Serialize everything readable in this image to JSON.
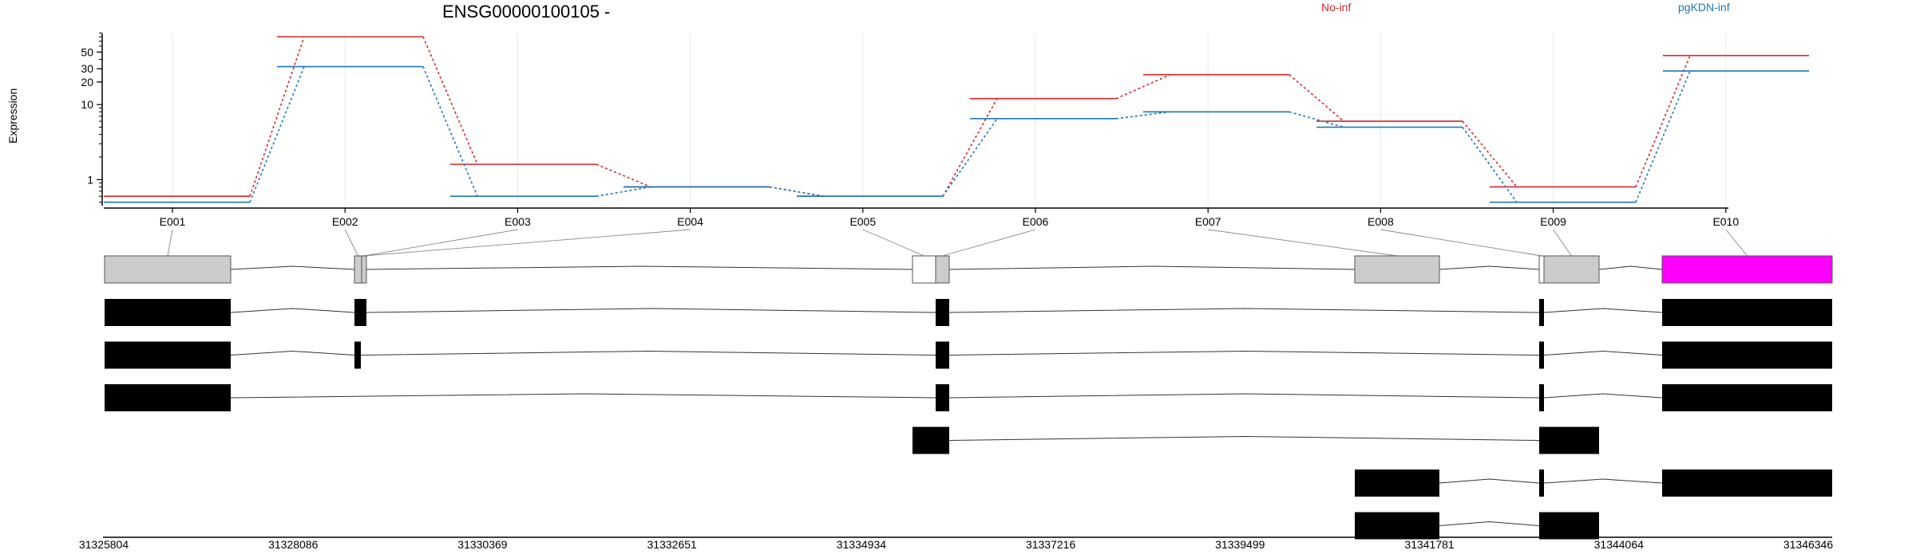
{
  "chart_data": {
    "type": "line",
    "title": "ENSG00000100105 -",
    "ylabel": "Expression",
    "yscale": "log",
    "ylim": [
      0.45,
      100
    ],
    "yticks": [
      1,
      10,
      20,
      30,
      50
    ],
    "grid": true,
    "categories": [
      "E001",
      "E002",
      "E003",
      "E004",
      "E005",
      "E006",
      "E007",
      "E008",
      "E009",
      "E010"
    ],
    "series": [
      {
        "name": "No-inf",
        "color": "#d62728",
        "values": [
          0.6,
          80,
          1.6,
          0.8,
          0.6,
          12,
          25,
          6,
          0.8,
          45
        ]
      },
      {
        "name": "pgKDN-inf",
        "color": "#1f77b4",
        "values": [
          0.5,
          32,
          0.6,
          0.8,
          0.6,
          6.5,
          8,
          5,
          0.5,
          28
        ]
      }
    ],
    "genomic_axis": {
      "tick_labels": [
        "31325804",
        "31328086",
        "31330369",
        "31332651",
        "31334934",
        "31337216",
        "31339499",
        "31341781",
        "31344064",
        "31346346"
      ]
    },
    "exon_status": [
      "plain",
      "plain",
      "plain",
      "plain",
      "unused",
      "plain",
      "plain",
      "plain",
      "unused",
      "highlight"
    ],
    "colors": {
      "plain": "#cccccc",
      "unused": "#ffffff",
      "highlight": "#ff00ff",
      "transcript": "#000000"
    }
  }
}
